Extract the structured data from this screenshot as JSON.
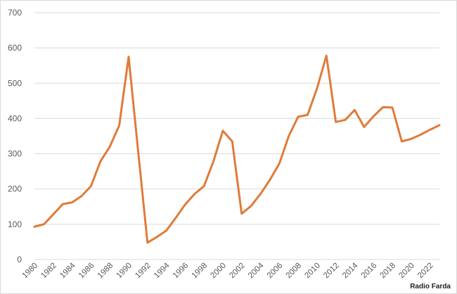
{
  "watermark": "Radio Farda",
  "chart_data": {
    "type": "line",
    "title": "",
    "xlabel": "",
    "ylabel": "",
    "ylim": [
      0,
      700
    ],
    "yticks": [
      0,
      100,
      200,
      300,
      400,
      500,
      600,
      700
    ],
    "xlim": [
      1980,
      2023
    ],
    "xticks": [
      1980,
      1982,
      1984,
      1986,
      1988,
      1990,
      1992,
      1994,
      1996,
      1998,
      2000,
      2002,
      2004,
      2006,
      2008,
      2010,
      2012,
      2014,
      2016,
      2018,
      2020,
      2022
    ],
    "grid": "horizontal",
    "legend": "none",
    "line_color": "#e07b39",
    "x": [
      1980,
      1981,
      1982,
      1983,
      1984,
      1985,
      1986,
      1987,
      1988,
      1989,
      1990,
      1991,
      1992,
      1993,
      1994,
      1995,
      1996,
      1997,
      1998,
      1999,
      2000,
      2001,
      2002,
      2003,
      2004,
      2005,
      2006,
      2007,
      2008,
      2009,
      2010,
      2011,
      2012,
      2013,
      2014,
      2015,
      2016,
      2017,
      2018,
      2019,
      2020,
      2021,
      2022,
      2023
    ],
    "series": [
      {
        "values": [
          93,
          100,
          128,
          157,
          162,
          180,
          208,
          278,
          320,
          380,
          575,
          310,
          48,
          64,
          82,
          118,
          156,
          186,
          208,
          278,
          365,
          335,
          130,
          152,
          186,
          226,
          272,
          350,
          405,
          410,
          485,
          578,
          390,
          396,
          424,
          376,
          406,
          432,
          431,
          335,
          342,
          354,
          368,
          381
        ]
      }
    ]
  }
}
